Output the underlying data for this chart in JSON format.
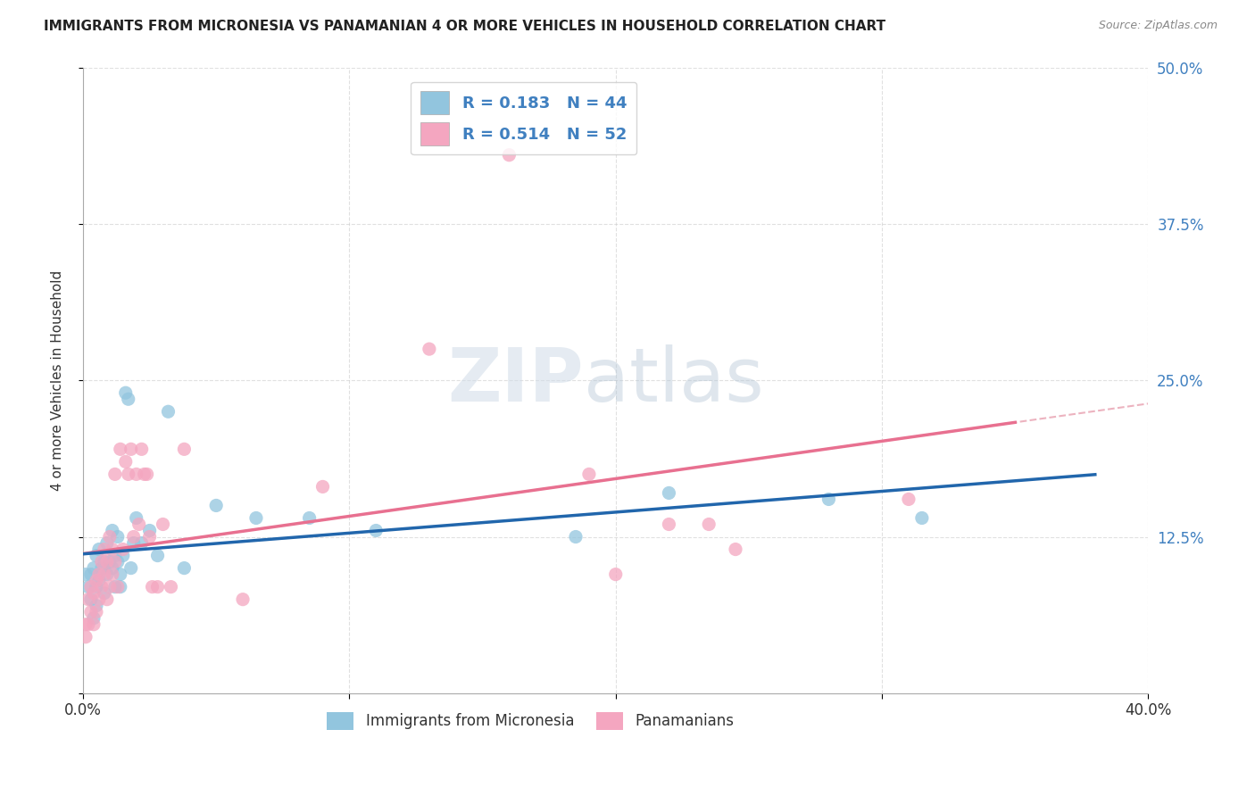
{
  "title": "IMMIGRANTS FROM MICRONESIA VS PANAMANIAN 4 OR MORE VEHICLES IN HOUSEHOLD CORRELATION CHART",
  "source": "Source: ZipAtlas.com",
  "ylabel": "4 or more Vehicles in Household",
  "xlim": [
    0.0,
    0.4
  ],
  "ylim": [
    0.0,
    0.5
  ],
  "legend_r1": "R = 0.183",
  "legend_n1": "N = 44",
  "legend_r2": "R = 0.514",
  "legend_n2": "N = 52",
  "blue_color": "#92c5de",
  "pink_color": "#f4a6c0",
  "line_blue": "#2166ac",
  "line_pink": "#d6604d",
  "line_pink_solid": "#e87090",
  "line_pink_dash": "#e8a0b0",
  "watermark_color": "#d0dce8",
  "background_color": "#ffffff",
  "grid_color": "#cccccc",
  "blue_scatter_x": [
    0.001,
    0.002,
    0.003,
    0.003,
    0.004,
    0.004,
    0.005,
    0.005,
    0.005,
    0.006,
    0.006,
    0.007,
    0.008,
    0.008,
    0.009,
    0.009,
    0.01,
    0.011,
    0.011,
    0.012,
    0.012,
    0.013,
    0.013,
    0.014,
    0.014,
    0.015,
    0.016,
    0.017,
    0.018,
    0.019,
    0.02,
    0.022,
    0.025,
    0.028,
    0.032,
    0.038,
    0.05,
    0.065,
    0.085,
    0.11,
    0.185,
    0.22,
    0.28,
    0.315
  ],
  "blue_scatter_y": [
    0.095,
    0.085,
    0.075,
    0.095,
    0.06,
    0.1,
    0.07,
    0.085,
    0.11,
    0.09,
    0.115,
    0.1,
    0.105,
    0.08,
    0.095,
    0.12,
    0.105,
    0.1,
    0.13,
    0.11,
    0.085,
    0.105,
    0.125,
    0.095,
    0.085,
    0.11,
    0.24,
    0.235,
    0.1,
    0.12,
    0.14,
    0.12,
    0.13,
    0.11,
    0.225,
    0.1,
    0.15,
    0.14,
    0.14,
    0.13,
    0.125,
    0.16,
    0.155,
    0.14
  ],
  "pink_scatter_x": [
    0.001,
    0.001,
    0.002,
    0.002,
    0.003,
    0.003,
    0.004,
    0.004,
    0.005,
    0.005,
    0.006,
    0.006,
    0.007,
    0.007,
    0.008,
    0.008,
    0.009,
    0.009,
    0.01,
    0.01,
    0.011,
    0.011,
    0.012,
    0.012,
    0.013,
    0.014,
    0.015,
    0.016,
    0.017,
    0.018,
    0.019,
    0.02,
    0.021,
    0.022,
    0.023,
    0.024,
    0.025,
    0.026,
    0.028,
    0.03,
    0.033,
    0.038,
    0.06,
    0.09,
    0.13,
    0.16,
    0.19,
    0.2,
    0.22,
    0.235,
    0.245,
    0.31
  ],
  "pink_scatter_y": [
    0.045,
    0.055,
    0.055,
    0.075,
    0.065,
    0.085,
    0.055,
    0.08,
    0.065,
    0.09,
    0.095,
    0.075,
    0.105,
    0.085,
    0.095,
    0.115,
    0.075,
    0.105,
    0.085,
    0.125,
    0.095,
    0.115,
    0.175,
    0.105,
    0.085,
    0.195,
    0.115,
    0.185,
    0.175,
    0.195,
    0.125,
    0.175,
    0.135,
    0.195,
    0.175,
    0.175,
    0.125,
    0.085,
    0.085,
    0.135,
    0.085,
    0.195,
    0.075,
    0.165,
    0.275,
    0.43,
    0.175,
    0.095,
    0.135,
    0.135,
    0.115,
    0.155
  ]
}
